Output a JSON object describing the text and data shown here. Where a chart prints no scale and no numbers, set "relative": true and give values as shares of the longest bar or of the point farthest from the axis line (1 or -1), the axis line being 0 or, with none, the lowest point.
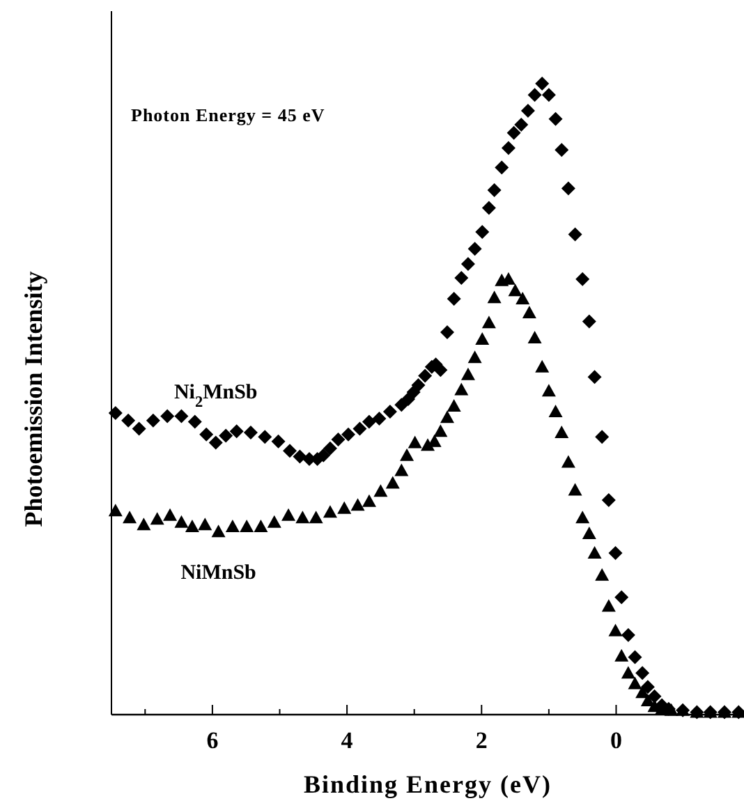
{
  "chart_data": {
    "type": "scatter",
    "relative": true,
    "xlabel": "Binding Energy (eV)",
    "ylabel": "Photoemission Intensity",
    "annotations": [
      "Photon Energy = 45 eV"
    ],
    "xlim": [
      7.5,
      -1.9
    ],
    "xticks": [
      {
        "value": 7,
        "label": null
      },
      6,
      {
        "value": 5,
        "label": null
      },
      4,
      {
        "value": 3,
        "label": null
      },
      2,
      {
        "value": 1,
        "label": null
      },
      0
    ],
    "grid": false,
    "series": [
      {
        "name": "Ni$_{2}$MnSb",
        "color": "#000000",
        "marker": "diamond",
        "x": [
          7.44,
          7.25,
          7.09,
          6.88,
          6.67,
          6.46,
          6.26,
          6.09,
          5.95,
          5.8,
          5.64,
          5.43,
          5.22,
          5.02,
          4.85,
          4.7,
          4.56,
          4.44,
          4.35,
          4.25,
          4.13,
          3.98,
          3.81,
          3.67,
          3.52,
          3.36,
          3.19,
          3.09,
          3.01,
          2.94,
          2.84,
          2.74,
          2.68,
          2.61,
          2.51,
          2.41,
          2.3,
          2.2,
          2.1,
          1.99,
          1.89,
          1.81,
          1.7,
          1.6,
          1.52,
          1.41,
          1.31,
          1.21,
          1.1,
          1.0,
          0.9,
          0.81,
          0.71,
          0.61,
          0.5,
          0.4,
          0.32,
          0.21,
          0.11,
          0.01,
          -0.08,
          -0.18,
          -0.28,
          -0.39,
          -0.47,
          -0.57,
          -0.68,
          -0.78,
          -0.99,
          -1.2,
          -1.4,
          -1.61,
          -1.82
        ],
        "values": [
          0.478,
          0.466,
          0.453,
          0.466,
          0.473,
          0.473,
          0.464,
          0.444,
          0.431,
          0.442,
          0.449,
          0.447,
          0.44,
          0.433,
          0.418,
          0.409,
          0.405,
          0.405,
          0.411,
          0.422,
          0.436,
          0.444,
          0.453,
          0.464,
          0.469,
          0.48,
          0.491,
          0.5,
          0.511,
          0.522,
          0.537,
          0.551,
          0.555,
          0.546,
          0.606,
          0.659,
          0.692,
          0.714,
          0.738,
          0.765,
          0.803,
          0.831,
          0.867,
          0.898,
          0.922,
          0.935,
          0.957,
          0.982,
          1,
          0.982,
          0.944,
          0.895,
          0.834,
          0.761,
          0.69,
          0.623,
          0.535,
          0.44,
          0.34,
          0.256,
          0.186,
          0.126,
          0.091,
          0.066,
          0.044,
          0.029,
          0.015,
          0.009,
          0.007,
          0.004,
          0.004,
          0.004,
          0.004
        ]
      },
      {
        "name": "NiMnSb",
        "color": "#000000",
        "marker": "triangle",
        "x": [
          7.44,
          7.23,
          7.02,
          6.82,
          6.63,
          6.46,
          6.3,
          6.11,
          5.91,
          5.7,
          5.49,
          5.28,
          5.08,
          4.87,
          4.66,
          4.46,
          4.25,
          4.04,
          3.84,
          3.67,
          3.5,
          3.32,
          3.19,
          3.11,
          2.99,
          2.8,
          2.7,
          2.61,
          2.51,
          2.41,
          2.3,
          2.2,
          2.1,
          1.99,
          1.89,
          1.81,
          1.7,
          1.6,
          1.5,
          1.39,
          1.29,
          1.21,
          1.1,
          1.0,
          0.9,
          0.81,
          0.71,
          0.61,
          0.5,
          0.4,
          0.32,
          0.21,
          0.11,
          0.01,
          -0.08,
          -0.18,
          -0.28,
          -0.39,
          -0.47,
          -0.57,
          -0.68,
          -0.82,
          -0.99,
          -1.2,
          -1.4,
          -1.61,
          -1.82
        ],
        "values": [
          0.323,
          0.312,
          0.301,
          0.31,
          0.316,
          0.305,
          0.298,
          0.301,
          0.29,
          0.298,
          0.298,
          0.298,
          0.305,
          0.316,
          0.312,
          0.312,
          0.321,
          0.327,
          0.332,
          0.338,
          0.354,
          0.367,
          0.387,
          0.411,
          0.431,
          0.427,
          0.433,
          0.449,
          0.471,
          0.489,
          0.515,
          0.539,
          0.566,
          0.595,
          0.621,
          0.661,
          0.688,
          0.69,
          0.672,
          0.659,
          0.637,
          0.597,
          0.551,
          0.513,
          0.48,
          0.447,
          0.4,
          0.356,
          0.312,
          0.287,
          0.256,
          0.221,
          0.172,
          0.133,
          0.093,
          0.066,
          0.049,
          0.035,
          0.022,
          0.013,
          0.009,
          0.007,
          0.007,
          0.004,
          0.004,
          0.004,
          0.004
        ]
      }
    ]
  }
}
